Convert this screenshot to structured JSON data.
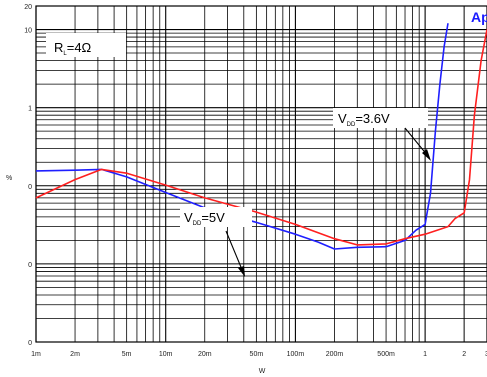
{
  "chart_data": {
    "type": "line",
    "title": "",
    "xlabel": "W",
    "ylabel": "%",
    "x_scale": "log",
    "y_scale": "log",
    "xlim": [
      0.001,
      3
    ],
    "ylim": [
      0.001,
      20
    ],
    "grid": true,
    "x_ticks": [
      {
        "value": 0.001,
        "label": "1m"
      },
      {
        "value": 0.002,
        "label": "2m"
      },
      {
        "value": 0.005,
        "label": "5m"
      },
      {
        "value": 0.01,
        "label": "10m"
      },
      {
        "value": 0.02,
        "label": "20m"
      },
      {
        "value": 0.05,
        "label": "50m"
      },
      {
        "value": 0.1,
        "label": "100m"
      },
      {
        "value": 0.2,
        "label": "200m"
      },
      {
        "value": 0.5,
        "label": "500m"
      },
      {
        "value": 1,
        "label": "1"
      },
      {
        "value": 2,
        "label": "2"
      },
      {
        "value": 3,
        "label": "3"
      }
    ],
    "y_ticks": [
      {
        "value": 0.001,
        "label": "0"
      },
      {
        "value": 0.01,
        "label": "0"
      },
      {
        "value": 0.1,
        "label": "0"
      },
      {
        "value": 1,
        "label": "1"
      },
      {
        "value": 10,
        "label": "10"
      },
      {
        "value": 20,
        "label": "20"
      }
    ],
    "series": [
      {
        "name": "VDD=3.6V",
        "color": "#1f1fff",
        "x": [
          0.001,
          0.002,
          0.0032,
          0.005,
          0.01,
          0.02,
          0.05,
          0.1,
          0.15,
          0.2,
          0.3,
          0.5,
          0.7,
          0.85,
          1.0,
          1.1,
          1.2,
          1.3,
          1.4,
          1.5
        ],
        "y": [
          0.155,
          0.158,
          0.162,
          0.13,
          0.082,
          0.052,
          0.034,
          0.024,
          0.019,
          0.0155,
          0.0163,
          0.0166,
          0.02,
          0.027,
          0.032,
          0.08,
          0.5,
          2.0,
          6.0,
          12.0
        ]
      },
      {
        "name": "VDD=5V",
        "color": "#ff1f1f",
        "x": [
          0.001,
          0.002,
          0.0032,
          0.005,
          0.01,
          0.02,
          0.05,
          0.1,
          0.2,
          0.3,
          0.5,
          0.7,
          1.0,
          1.5,
          1.7,
          2.0,
          2.2,
          2.4,
          2.7,
          3.0
        ],
        "y": [
          0.07,
          0.12,
          0.162,
          0.145,
          0.102,
          0.07,
          0.046,
          0.032,
          0.021,
          0.0175,
          0.018,
          0.021,
          0.024,
          0.03,
          0.038,
          0.045,
          0.12,
          0.8,
          4.0,
          10.0
        ]
      }
    ],
    "annotations": [
      {
        "main": "R",
        "sub": "L",
        "tail": "=4Ω"
      },
      {
        "main": "V",
        "sub": "DD",
        "tail": "=3.6V"
      },
      {
        "main": "V",
        "sub": "DD",
        "tail": "=5V"
      }
    ],
    "logo_text": "Ap"
  }
}
